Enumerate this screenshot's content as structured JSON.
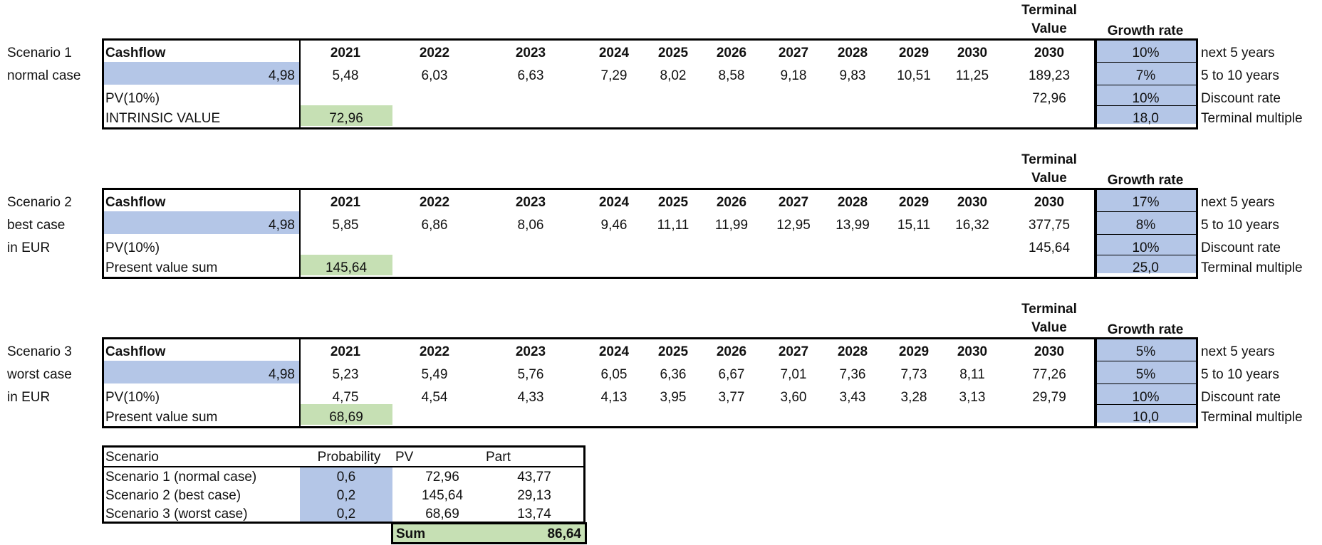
{
  "scenarios": [
    {
      "name": "Scenario 1",
      "subtitle_1": "normal case",
      "subtitle_2": "",
      "header_terminal_line1": "Terminal",
      "header_terminal_line2": "Value",
      "header_growth": "Growth rate",
      "cashflow_label": "Cashflow",
      "years": [
        "2021",
        "2022",
        "2023",
        "2024",
        "2025",
        "2026",
        "2027",
        "2028",
        "2029",
        "2030"
      ],
      "terminal_year": "2030",
      "base_cashflow": "4,98",
      "cashflows": [
        "5,48",
        "6,03",
        "6,63",
        "7,29",
        "8,02",
        "8,58",
        "9,18",
        "9,83",
        "10,51",
        "11,25"
      ],
      "terminal_value": "189,23",
      "pv_label": "PV(10%)",
      "pv_values": [
        "",
        "",
        "",
        "",
        "",
        "",
        "",
        "",
        "",
        ""
      ],
      "pv_terminal": "72,96",
      "sum_label": "INTRINSIC VALUE",
      "sum_value": "72,96",
      "params": [
        {
          "value": "10%",
          "label": "next 5 years"
        },
        {
          "value": "7%",
          "label": "5 to 10 years"
        },
        {
          "value": "10%",
          "label": "Discount rate"
        },
        {
          "value": "18,0",
          "label": "Terminal multiple"
        }
      ]
    },
    {
      "name": "Scenario 2",
      "subtitle_1": "best case",
      "subtitle_2": "in EUR",
      "header_terminal_line1": "Terminal",
      "header_terminal_line2": "Value",
      "header_growth": "Growth rate",
      "cashflow_label": "Cashflow",
      "years": [
        "2021",
        "2022",
        "2023",
        "2024",
        "2025",
        "2026",
        "2027",
        "2028",
        "2029",
        "2030"
      ],
      "terminal_year": "2030",
      "base_cashflow": "4,98",
      "cashflows": [
        "5,85",
        "6,86",
        "8,06",
        "9,46",
        "11,11",
        "11,99",
        "12,95",
        "13,99",
        "15,11",
        "16,32"
      ],
      "terminal_value": "377,75",
      "pv_label": "PV(10%)",
      "pv_values": [
        "",
        "",
        "",
        "",
        "",
        "",
        "",
        "",
        "",
        ""
      ],
      "pv_terminal": "145,64",
      "sum_label": "Present value sum",
      "sum_value": "145,64",
      "params": [
        {
          "value": "17%",
          "label": "next 5 years"
        },
        {
          "value": "8%",
          "label": "5 to 10 years"
        },
        {
          "value": "10%",
          "label": "Discount rate"
        },
        {
          "value": "25,0",
          "label": "Terminal multiple"
        }
      ]
    },
    {
      "name": "Scenario 3",
      "subtitle_1": "worst case",
      "subtitle_2": "in EUR",
      "header_terminal_line1": "Terminal",
      "header_terminal_line2": "Value",
      "header_growth": "Growth rate",
      "cashflow_label": "Cashflow",
      "years": [
        "2021",
        "2022",
        "2023",
        "2024",
        "2025",
        "2026",
        "2027",
        "2028",
        "2029",
        "2030"
      ],
      "terminal_year": "2030",
      "base_cashflow": "4,98",
      "cashflows": [
        "5,23",
        "5,49",
        "5,76",
        "6,05",
        "6,36",
        "6,67",
        "7,01",
        "7,36",
        "7,73",
        "8,11"
      ],
      "terminal_value": "77,26",
      "pv_label": "PV(10%)",
      "pv_values": [
        "4,75",
        "4,54",
        "4,33",
        "4,13",
        "3,95",
        "3,77",
        "3,60",
        "3,43",
        "3,28",
        "3,13"
      ],
      "pv_terminal": "29,79",
      "sum_label": "Present value sum",
      "sum_value": "68,69",
      "params": [
        {
          "value": "5%",
          "label": "next 5 years"
        },
        {
          "value": "5%",
          "label": "5 to 10 years"
        },
        {
          "value": "10%",
          "label": "Discount rate"
        },
        {
          "value": "10,0",
          "label": "Terminal multiple"
        }
      ]
    }
  ],
  "summary": {
    "headers": [
      "Scenario",
      "Probability",
      "PV",
      "Part"
    ],
    "rows": [
      {
        "scenario": "Scenario 1 (normal case)",
        "probability": "0,6",
        "pv": "72,96",
        "part": "43,77"
      },
      {
        "scenario": "Scenario 2 (best case)",
        "probability": "0,2",
        "pv": "145,64",
        "part": "29,13"
      },
      {
        "scenario": "Scenario 3 (worst case)",
        "probability": "0,2",
        "pv": "68,69",
        "part": "13,74"
      }
    ],
    "sum_label": "Sum",
    "sum_value": "86,64"
  },
  "colors": {
    "input_fill": "#b4c6e7",
    "result_fill": "#c6e0b4",
    "border": "#000000"
  }
}
